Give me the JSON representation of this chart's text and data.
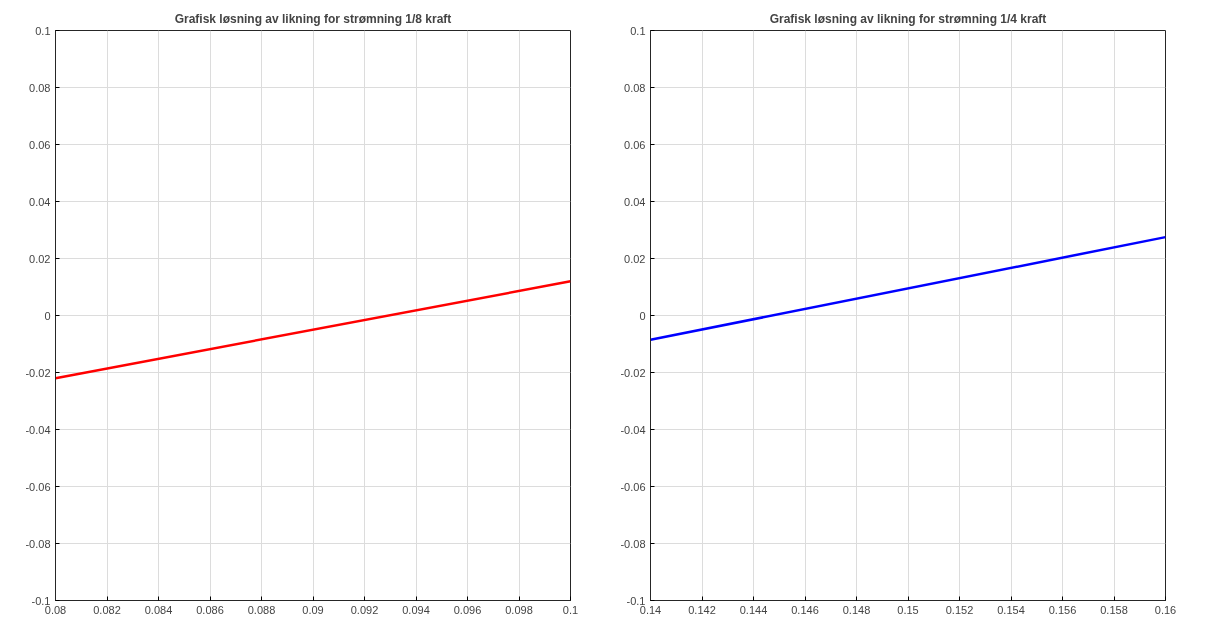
{
  "chart_data": [
    {
      "type": "line",
      "title": "Grafisk løsning av likning for strømning 1/8 kraft",
      "x": [
        0.08,
        0.1
      ],
      "series": [
        {
          "color": "#ff0000",
          "values": [
            -0.022,
            0.012
          ]
        }
      ],
      "xlim": [
        0.08,
        0.1
      ],
      "ylim": [
        -0.1,
        0.1
      ],
      "xticks": [
        0.08,
        0.082,
        0.084,
        0.086,
        0.088,
        0.09,
        0.092,
        0.094,
        0.096,
        0.098,
        0.1
      ],
      "yticks": [
        -0.1,
        -0.08,
        -0.06,
        -0.04,
        -0.02,
        0,
        0.02,
        0.04,
        0.06,
        0.08,
        0.1
      ],
      "grid": true,
      "line_style": "solid"
    },
    {
      "type": "line",
      "title": "Grafisk løsning av likning for strømning 1/4 kraft",
      "x": [
        0.14,
        0.16
      ],
      "series": [
        {
          "color": "#0000ff",
          "values": [
            -0.0085,
            0.0275
          ]
        }
      ],
      "xlim": [
        0.14,
        0.16
      ],
      "ylim": [
        -0.1,
        0.1
      ],
      "xticks": [
        0.14,
        0.142,
        0.144,
        0.146,
        0.148,
        0.15,
        0.152,
        0.154,
        0.156,
        0.158,
        0.16
      ],
      "yticks": [
        -0.1,
        -0.08,
        -0.06,
        -0.04,
        -0.02,
        0,
        0.02,
        0.04,
        0.06,
        0.08,
        0.1
      ],
      "grid": true,
      "line_style": "solid"
    }
  ]
}
